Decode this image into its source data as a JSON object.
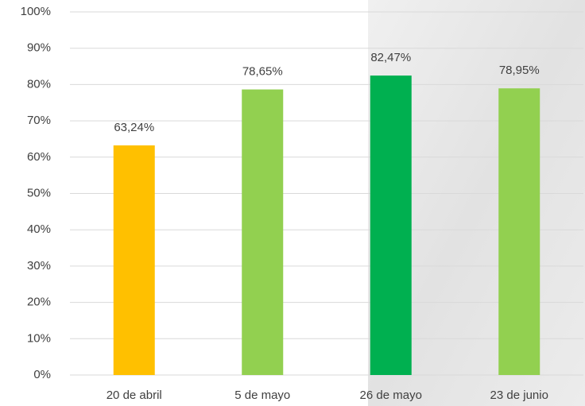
{
  "chart_data": {
    "type": "bar",
    "categories": [
      "20 de abril",
      "5 de mayo",
      "26 de mayo",
      "23 de junio"
    ],
    "values": [
      63.24,
      78.65,
      82.47,
      78.95
    ],
    "value_labels": [
      "63,24%",
      "78,65%",
      "82,47%",
      "78,95%"
    ],
    "colors": [
      "#ffc000",
      "#92d050",
      "#00b050",
      "#92d050"
    ],
    "ylim": [
      0,
      100
    ],
    "yticks": [
      {
        "value": 0,
        "label": "0%"
      },
      {
        "value": 10,
        "label": "10%"
      },
      {
        "value": 20,
        "label": "20%"
      },
      {
        "value": 30,
        "label": "30%"
      },
      {
        "value": 40,
        "label": "40%"
      },
      {
        "value": 50,
        "label": "50%"
      },
      {
        "value": 60,
        "label": "60%"
      },
      {
        "value": 70,
        "label": "70%"
      },
      {
        "value": 80,
        "label": "80%"
      },
      {
        "value": 90,
        "label": "90%"
      },
      {
        "value": 100,
        "label": "100%"
      }
    ],
    "grid": true
  }
}
